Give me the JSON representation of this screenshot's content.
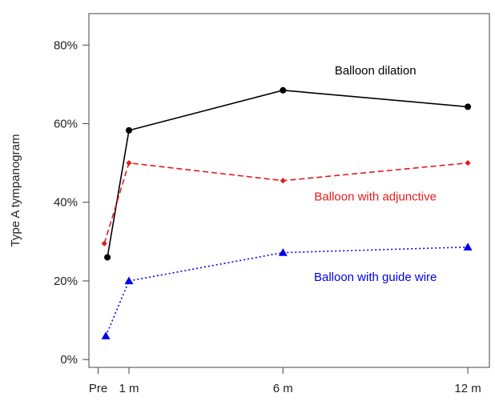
{
  "chart_data": {
    "type": "line",
    "title": "",
    "xlabel": "",
    "ylabel": "Type A tympanogram",
    "x": [
      0,
      1,
      6,
      12
    ],
    "x_tick_labels": [
      "Pre",
      "1 m",
      "6 m",
      "12 m"
    ],
    "y_tick_values": [
      0,
      20,
      40,
      60,
      80
    ],
    "y_tick_labels": [
      "0%",
      "20%",
      "40%",
      "60%",
      "80%"
    ],
    "ylim": [
      -2,
      88
    ],
    "xlim": [
      -0.3,
      12.7
    ],
    "grid": false,
    "legend": "none; series labelled directly on the plot",
    "series": [
      {
        "name": "Balloon dilation",
        "color": "#000000",
        "line_style": "solid",
        "marker": "circle",
        "x": [
          0.3,
          1,
          6,
          12
        ],
        "values": [
          26,
          58.3,
          68.5,
          64.3
        ],
        "label_at": [
          9,
          73.5
        ]
      },
      {
        "name": "Balloon with adjunctive",
        "color": "#e41a1c",
        "line_style": "dashed",
        "marker": "diamond",
        "x": [
          0.2,
          1,
          6,
          12
        ],
        "values": [
          29.5,
          50,
          45.5,
          50
        ],
        "label_at": [
          9,
          41.5
        ]
      },
      {
        "name": "Balloon with guide wire",
        "color": "#0000ee",
        "line_style": "dotted",
        "marker": "triangle",
        "x": [
          0.25,
          1,
          6,
          12
        ],
        "values": [
          6,
          20,
          27.2,
          28.6
        ],
        "label_at": [
          9,
          21
        ]
      }
    ]
  }
}
